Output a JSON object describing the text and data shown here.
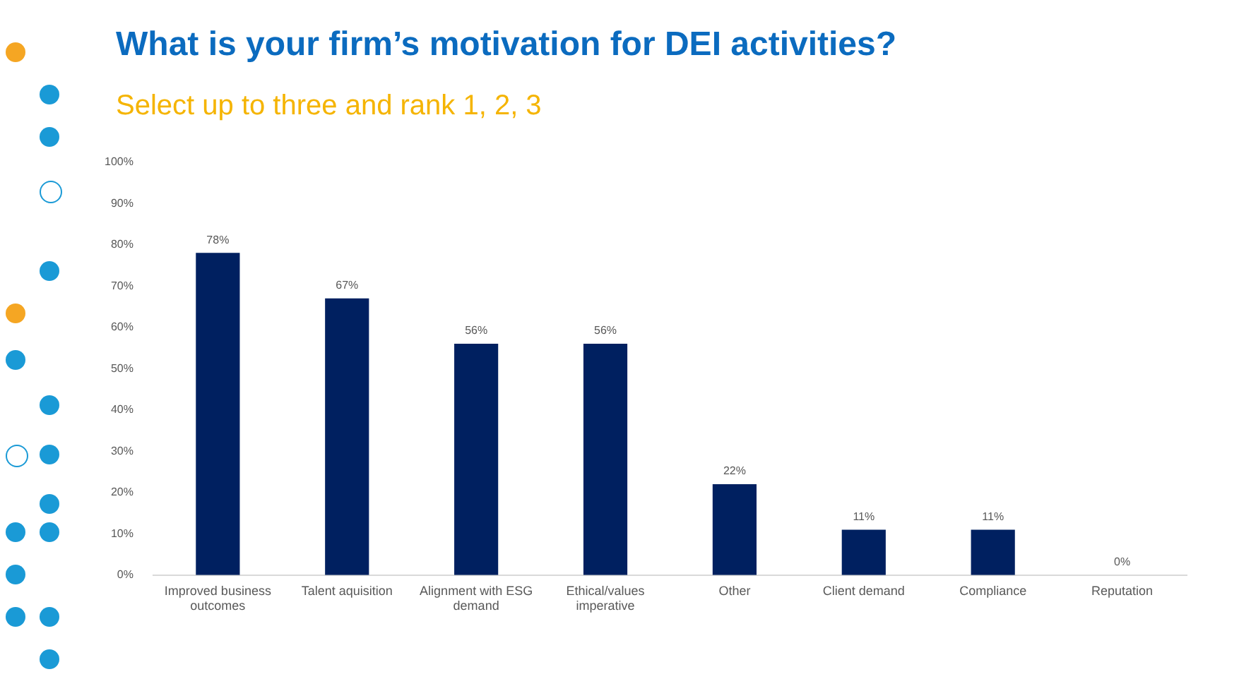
{
  "chart_data": {
    "type": "bar",
    "title": "What is your firm’s motivation for DEI activities?",
    "subtitle": "Select up to three and rank 1, 2, 3",
    "categories": [
      "Improved business outcomes",
      "Talent aquisition",
      "Alignment with ESG demand",
      "Ethical/values imperative",
      "Other",
      "Client demand",
      "Compliance",
      "Reputation"
    ],
    "values": [
      78,
      67,
      56,
      56,
      22,
      11,
      11,
      0
    ],
    "value_labels": [
      "78%",
      "67%",
      "56%",
      "56%",
      "22%",
      "11%",
      "11%",
      "0%"
    ],
    "color": "#002060",
    "ylim": [
      0,
      100
    ],
    "yticks": [
      {
        "value": 0,
        "label": "0%"
      },
      {
        "value": 10,
        "label": "10%"
      },
      {
        "value": 20,
        "label": "20%"
      },
      {
        "value": 30,
        "label": "30%"
      },
      {
        "value": 40,
        "label": "40%"
      },
      {
        "value": 50,
        "label": "50%"
      },
      {
        "value": 60,
        "label": "60%"
      },
      {
        "value": 70,
        "label": "70%"
      },
      {
        "value": 80,
        "label": "80%"
      },
      {
        "value": 90,
        "label": "90%"
      },
      {
        "value": 100,
        "label": "100%"
      }
    ],
    "grid": false,
    "legend": false
  }
}
